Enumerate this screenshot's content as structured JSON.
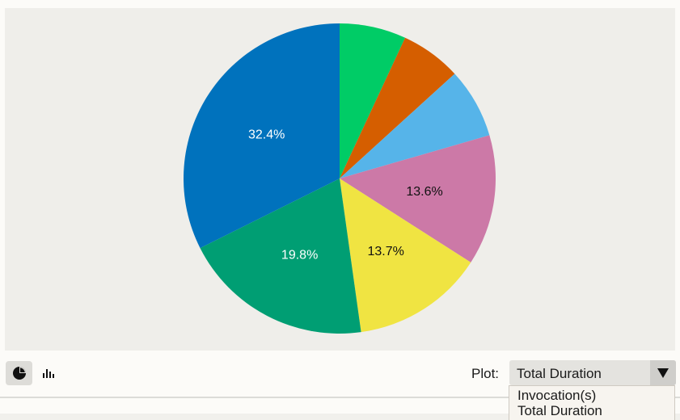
{
  "chart_data": {
    "type": "pie",
    "slices": [
      {
        "label": "",
        "value": 6.9,
        "color": "#00cc66"
      },
      {
        "label": "",
        "value": 6.3,
        "color": "#d55e00"
      },
      {
        "label": "",
        "value": 7.3,
        "color": "#56b4e9"
      },
      {
        "label": "13.6%",
        "value": 13.6,
        "color": "#cc79a7",
        "label_color": "#111111"
      },
      {
        "label": "13.7%",
        "value": 13.7,
        "color": "#f0e442",
        "label_color": "#111111"
      },
      {
        "label": "19.8%",
        "value": 19.8,
        "color": "#009e73",
        "label_color": "#ffffff"
      },
      {
        "label": "32.4%",
        "value": 32.4,
        "color": "#0072bd",
        "label_color": "#ffffff"
      }
    ]
  },
  "toolbar": {
    "pie_view_icon": "pie-chart-icon",
    "bar_view_icon": "bar-chart-icon",
    "plot_label": "Plot:",
    "plot_selected": "Total Duration",
    "plot_arrow": "▼"
  },
  "plot_dropdown": {
    "options": [
      "Invocation(s)",
      "Total Duration"
    ]
  }
}
